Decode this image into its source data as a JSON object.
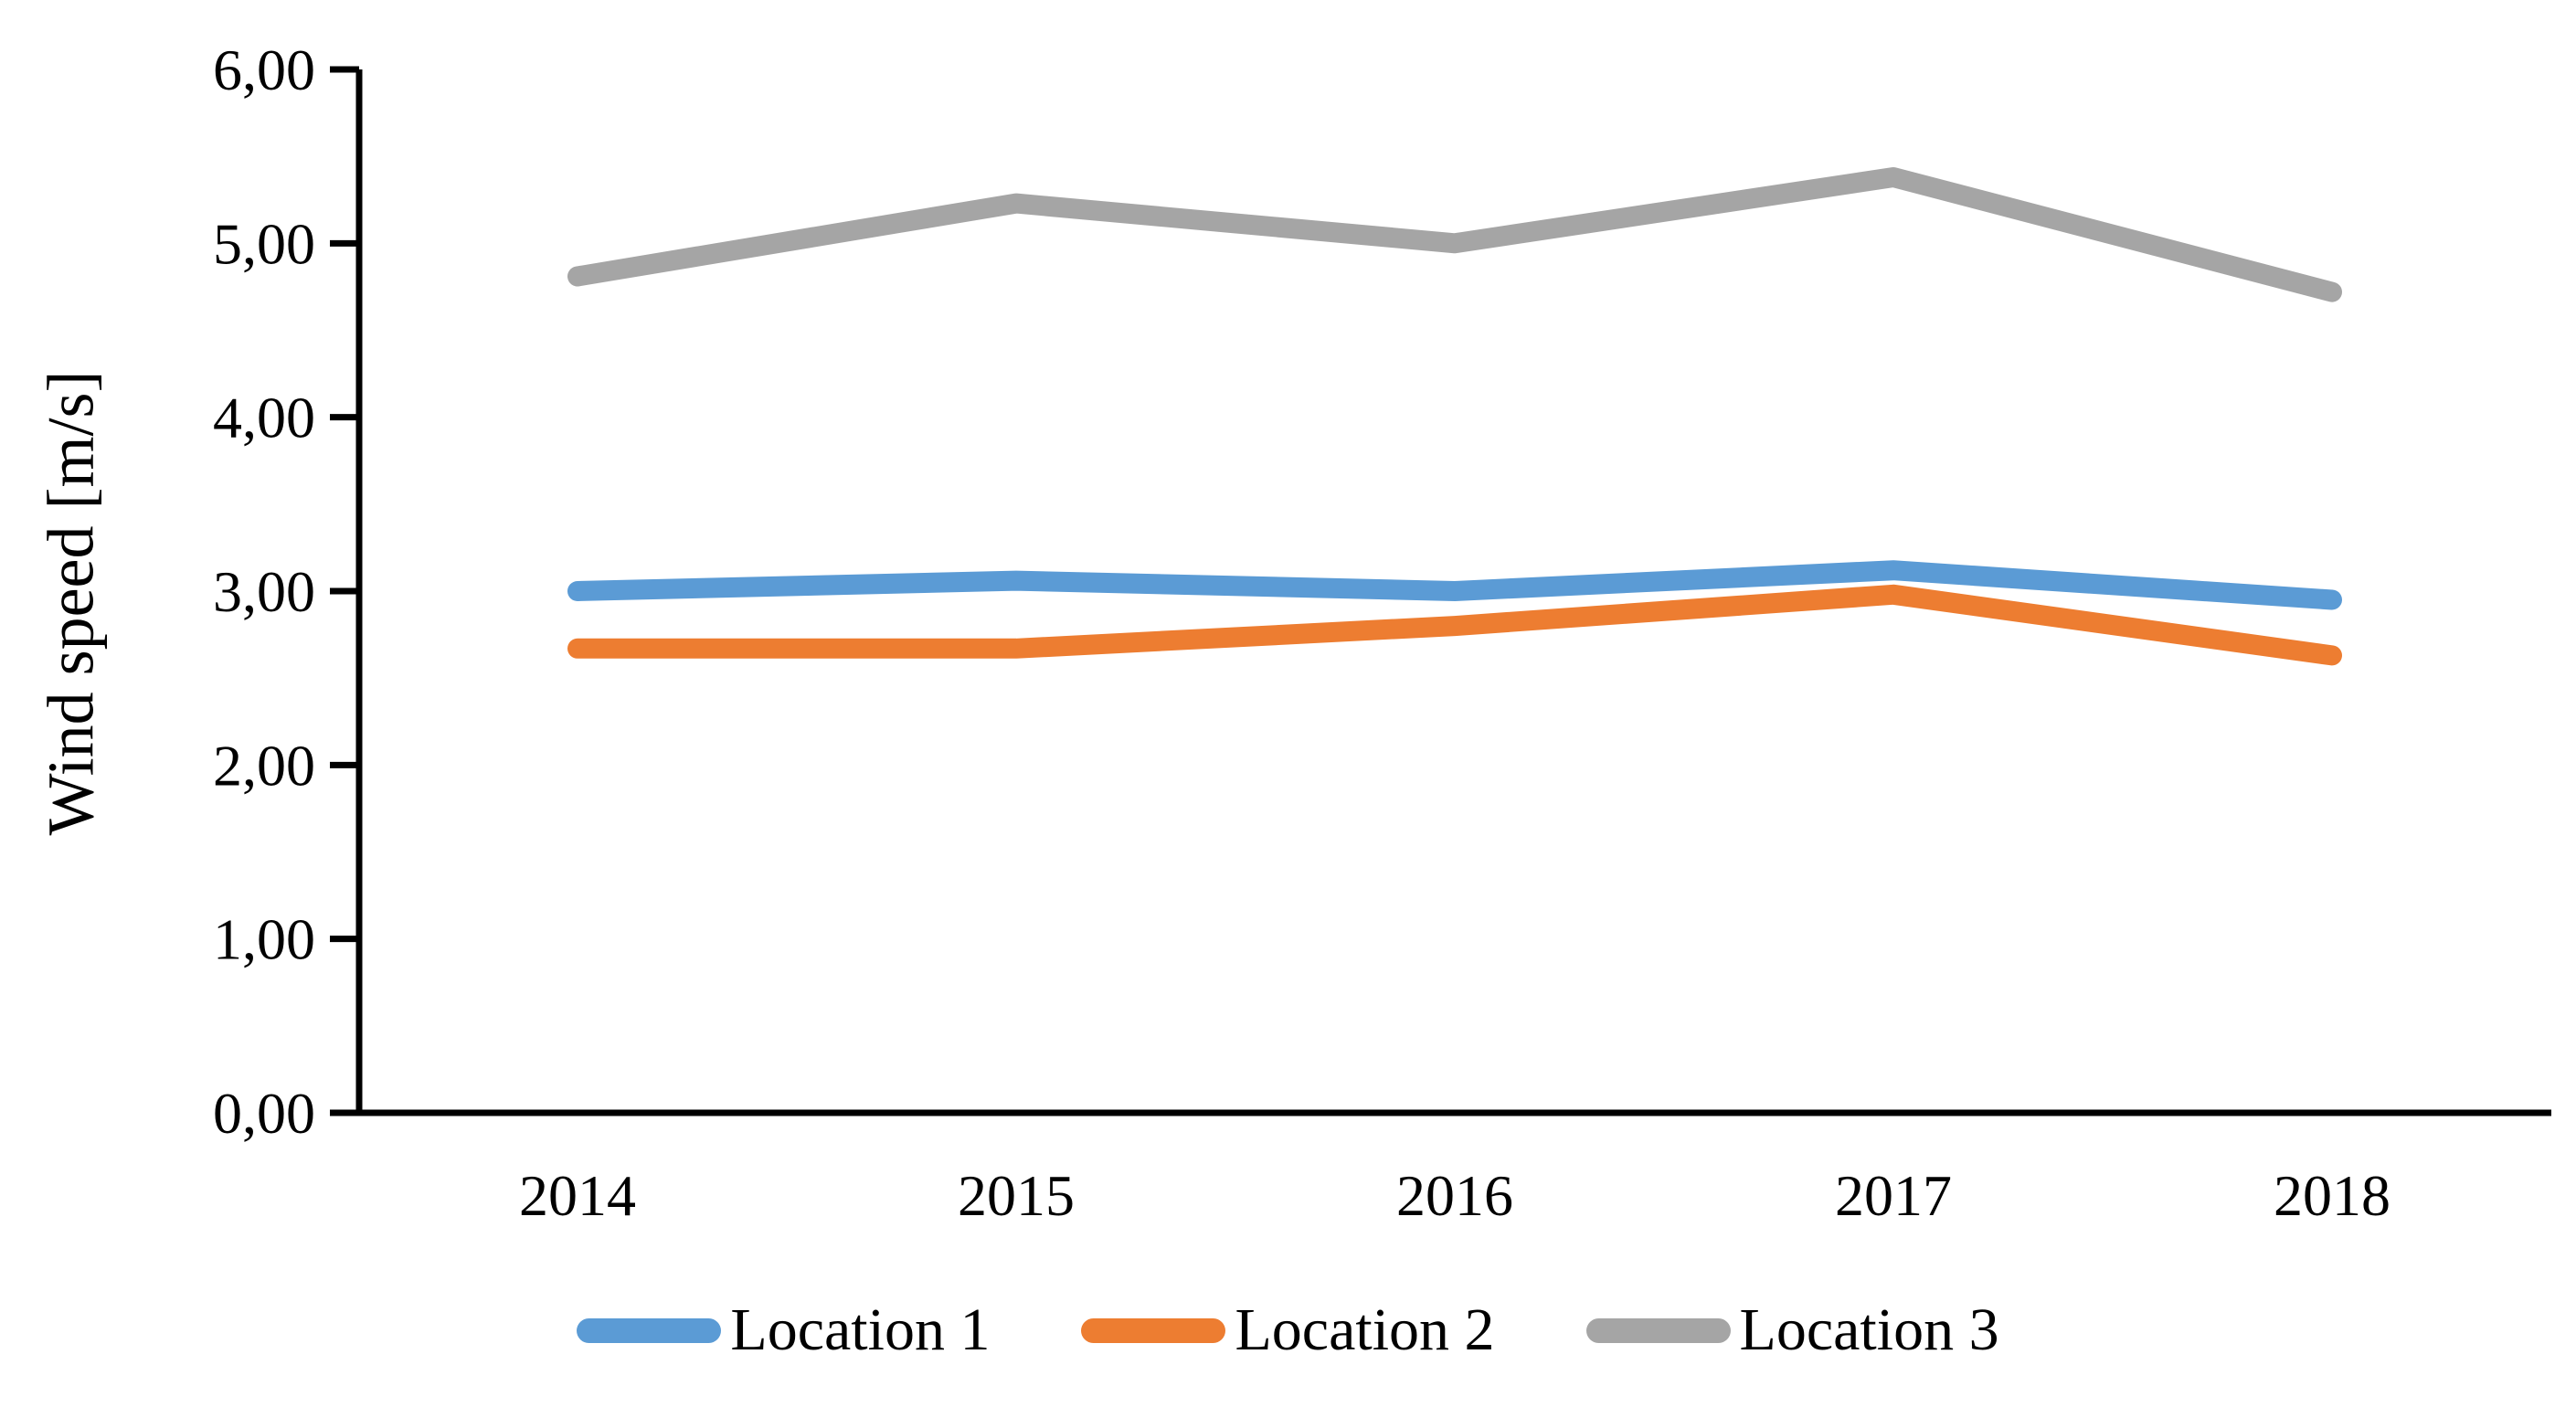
{
  "chart_data": {
    "type": "line",
    "title": "",
    "categories": [
      "2014",
      "2015",
      "2016",
      "2017",
      "2018"
    ],
    "series": [
      {
        "name": "Location 1",
        "color": "#5B9BD5",
        "values": [
          3.0,
          3.06,
          3.0,
          3.12,
          2.95
        ]
      },
      {
        "name": "Location 2",
        "color": "#ED7D31",
        "values": [
          2.67,
          2.67,
          2.8,
          2.98,
          2.63
        ]
      },
      {
        "name": "Location 3",
        "color": "#A5A5A5",
        "values": [
          4.81,
          5.23,
          5.0,
          5.38,
          4.72
        ]
      }
    ],
    "xlabel": "",
    "ylabel": "Wind speed [m/s]",
    "ylim": [
      0,
      6
    ],
    "y_tick_values": [
      0,
      1,
      2,
      3,
      4,
      5,
      6
    ],
    "y_tick_labels": [
      "0,00",
      "1,00",
      "2,00",
      "3,00",
      "4,00",
      "5,00",
      "6,00"
    ],
    "decimal_separator": ",",
    "grid": false,
    "legend_position": "bottom",
    "axis_color": "#000000",
    "background_color": "#FFFFFF"
  }
}
